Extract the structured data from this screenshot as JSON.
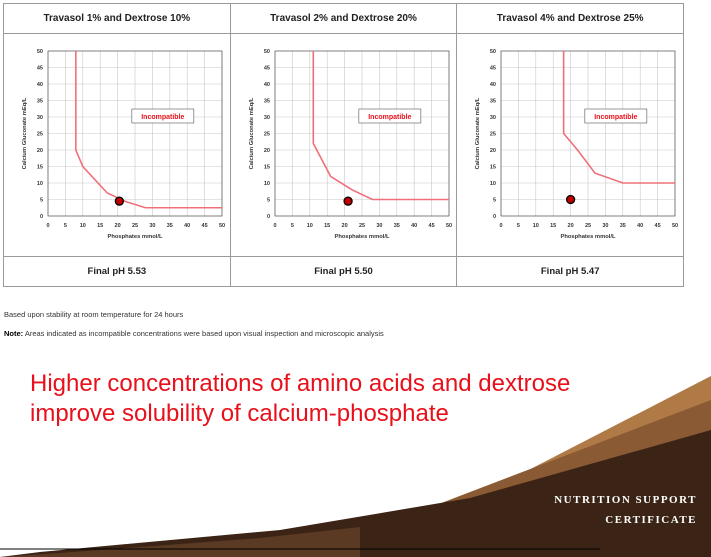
{
  "charts": [
    {
      "title": "Travasol 1% and Dextrose 10%",
      "footer": "Final pH 5.53"
    },
    {
      "title": "Travasol 2% and Dextrose 20%",
      "footer": "Final pH 5.50"
    },
    {
      "title": "Travasol 4% and Dextrose 25%",
      "footer": "Final pH 5.47"
    }
  ],
  "chart_data": [
    {
      "type": "line",
      "title": "Travasol 1% and Dextrose 10%",
      "xlabel": "Phosphates mmol/L",
      "ylabel": "Calcium Gluconate mEq/L",
      "xlim": [
        0,
        50
      ],
      "ylim": [
        0,
        50
      ],
      "xticks": [
        0,
        5,
        10,
        15,
        20,
        25,
        30,
        35,
        40,
        45,
        50
      ],
      "yticks": [
        0,
        5,
        10,
        15,
        20,
        25,
        30,
        35,
        40,
        45,
        50
      ],
      "grid": true,
      "series": [
        {
          "values_x": [
            8,
            8,
            10,
            17,
            22,
            28,
            50
          ],
          "values_y": [
            50,
            20,
            15,
            7,
            4.5,
            2.5,
            2.5
          ],
          "color": "#f0707a"
        }
      ],
      "annotation": "Incompatible",
      "points": [
        {
          "x": 20.5,
          "y": 4.5
        }
      ],
      "caption": "Final pH 5.53"
    },
    {
      "type": "line",
      "title": "Travasol 2% and Dextrose 20%",
      "xlabel": "Phosphates mmol/L",
      "ylabel": "Calcium Gluconate mEq/L",
      "xlim": [
        0,
        50
      ],
      "ylim": [
        0,
        50
      ],
      "xticks": [
        0,
        5,
        10,
        15,
        20,
        25,
        30,
        35,
        40,
        45,
        50
      ],
      "yticks": [
        0,
        5,
        10,
        15,
        20,
        25,
        30,
        35,
        40,
        45,
        50
      ],
      "grid": true,
      "series": [
        {
          "values_x": [
            11,
            11,
            16,
            22,
            28,
            50
          ],
          "values_y": [
            50,
            22,
            12,
            8,
            5,
            5
          ],
          "color": "#f0707a"
        }
      ],
      "annotation": "Incompatible",
      "points": [
        {
          "x": 21,
          "y": 4.5
        }
      ],
      "caption": "Final pH 5.50"
    },
    {
      "type": "line",
      "title": "Travasol 4% and Dextrose 25%",
      "xlabel": "Phosphates mmol/L",
      "ylabel": "Calcium Gluconate mEq/L",
      "xlim": [
        0,
        50
      ],
      "ylim": [
        0,
        50
      ],
      "xticks": [
        0,
        5,
        10,
        15,
        20,
        25,
        30,
        35,
        40,
        45,
        50
      ],
      "yticks": [
        0,
        5,
        10,
        15,
        20,
        25,
        30,
        35,
        40,
        45,
        50
      ],
      "grid": true,
      "series": [
        {
          "values_x": [
            18,
            18,
            22,
            27,
            35,
            50
          ],
          "values_y": [
            50,
            25,
            20,
            13,
            10,
            10
          ],
          "color": "#f0707a"
        }
      ],
      "annotation": "Incompatible",
      "points": [
        {
          "x": 20,
          "y": 5
        }
      ],
      "caption": "Final pH 5.47"
    }
  ],
  "note_basis": "Based upon stability at room temperature for 24 hours",
  "note_label": "Note:",
  "note_text": " Areas indicated as incompatible concentrations were based upon visual inspection and microscopic analysis",
  "headline": "Higher concentrations of amino acids and dextrose improve solubility of calcium-phosphate",
  "brand_line1": "NUTRITION SUPPORT",
  "brand_line2": "CERTIFICATE",
  "colors": {
    "curve": "#f0707a",
    "headline": "#e8101a",
    "dot": "#c00000",
    "brand_dark": "#3b2416",
    "brand_mid": "#6b4226",
    "brand_light": "#9b6a3d"
  }
}
